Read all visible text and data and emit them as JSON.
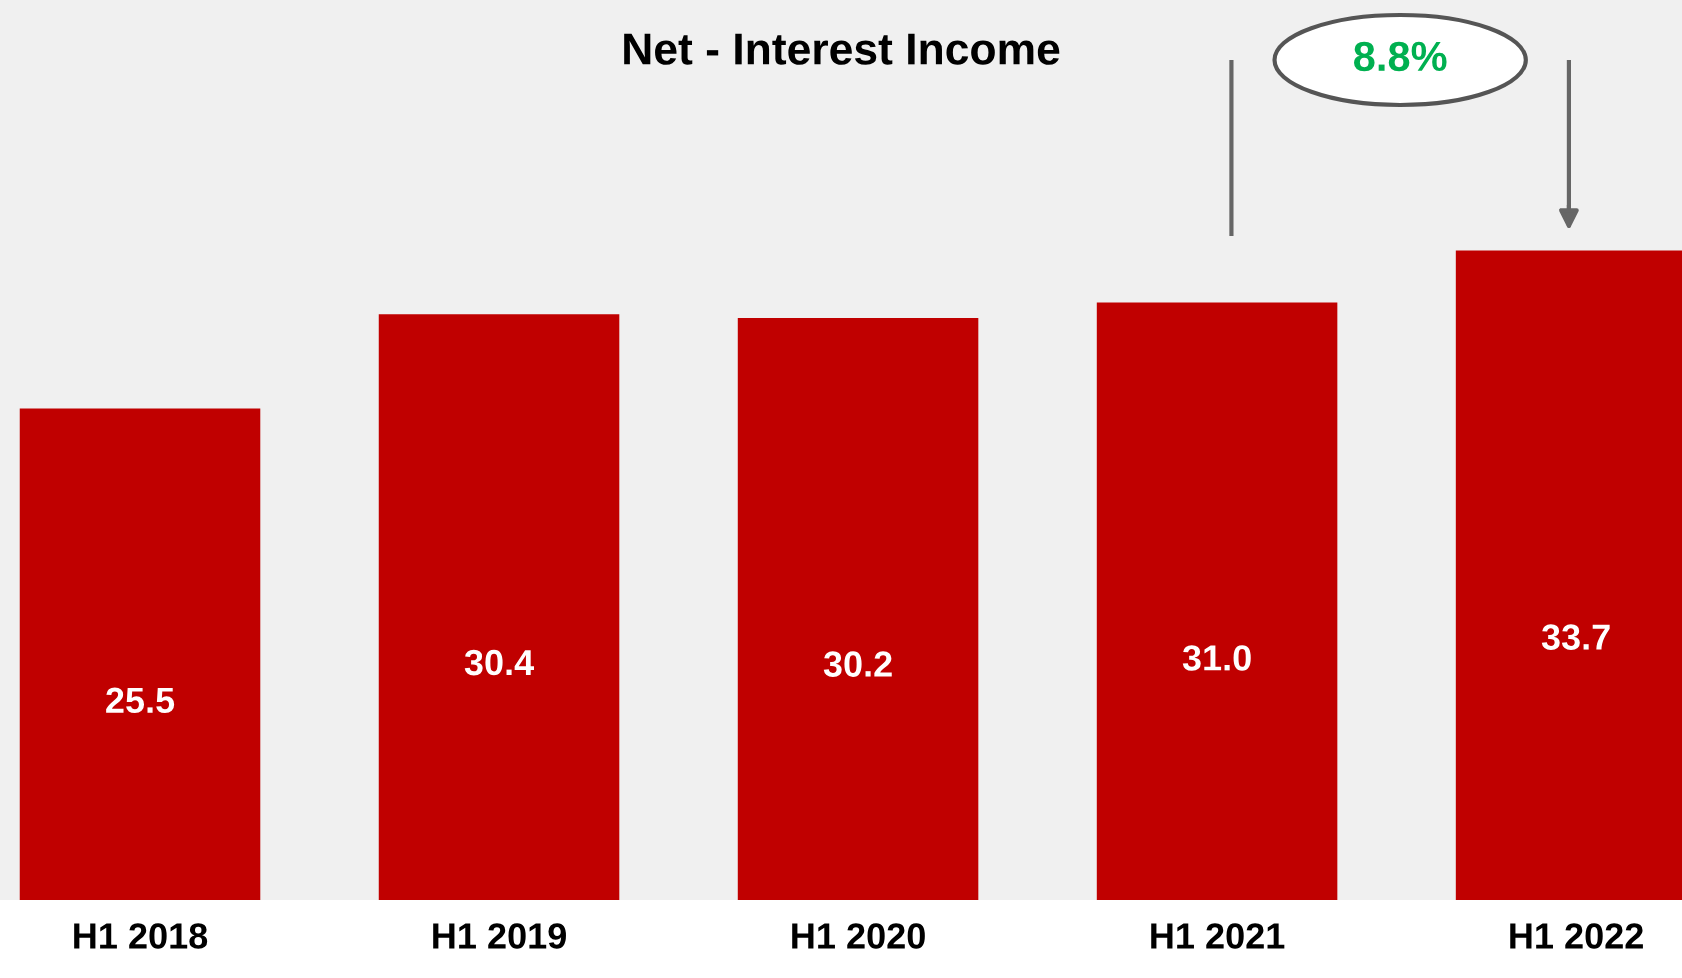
{
  "chart_data": {
    "type": "bar",
    "title": "Net - Interest Income",
    "categories": [
      "H1 2018",
      "H1 2019",
      "H1 2020",
      "H1 2021",
      "H1 2022"
    ],
    "values": [
      25.5,
      30.4,
      30.2,
      31.0,
      33.7
    ],
    "color": "#c00000",
    "ylim": [
      0,
      46.7
    ],
    "value_labels": [
      "25.5",
      "30.4",
      "30.2",
      "31.0",
      "33.7"
    ],
    "tick_labels": "x",
    "grid": false,
    "legend": false,
    "annotations": [
      "8.8%"
    ]
  }
}
